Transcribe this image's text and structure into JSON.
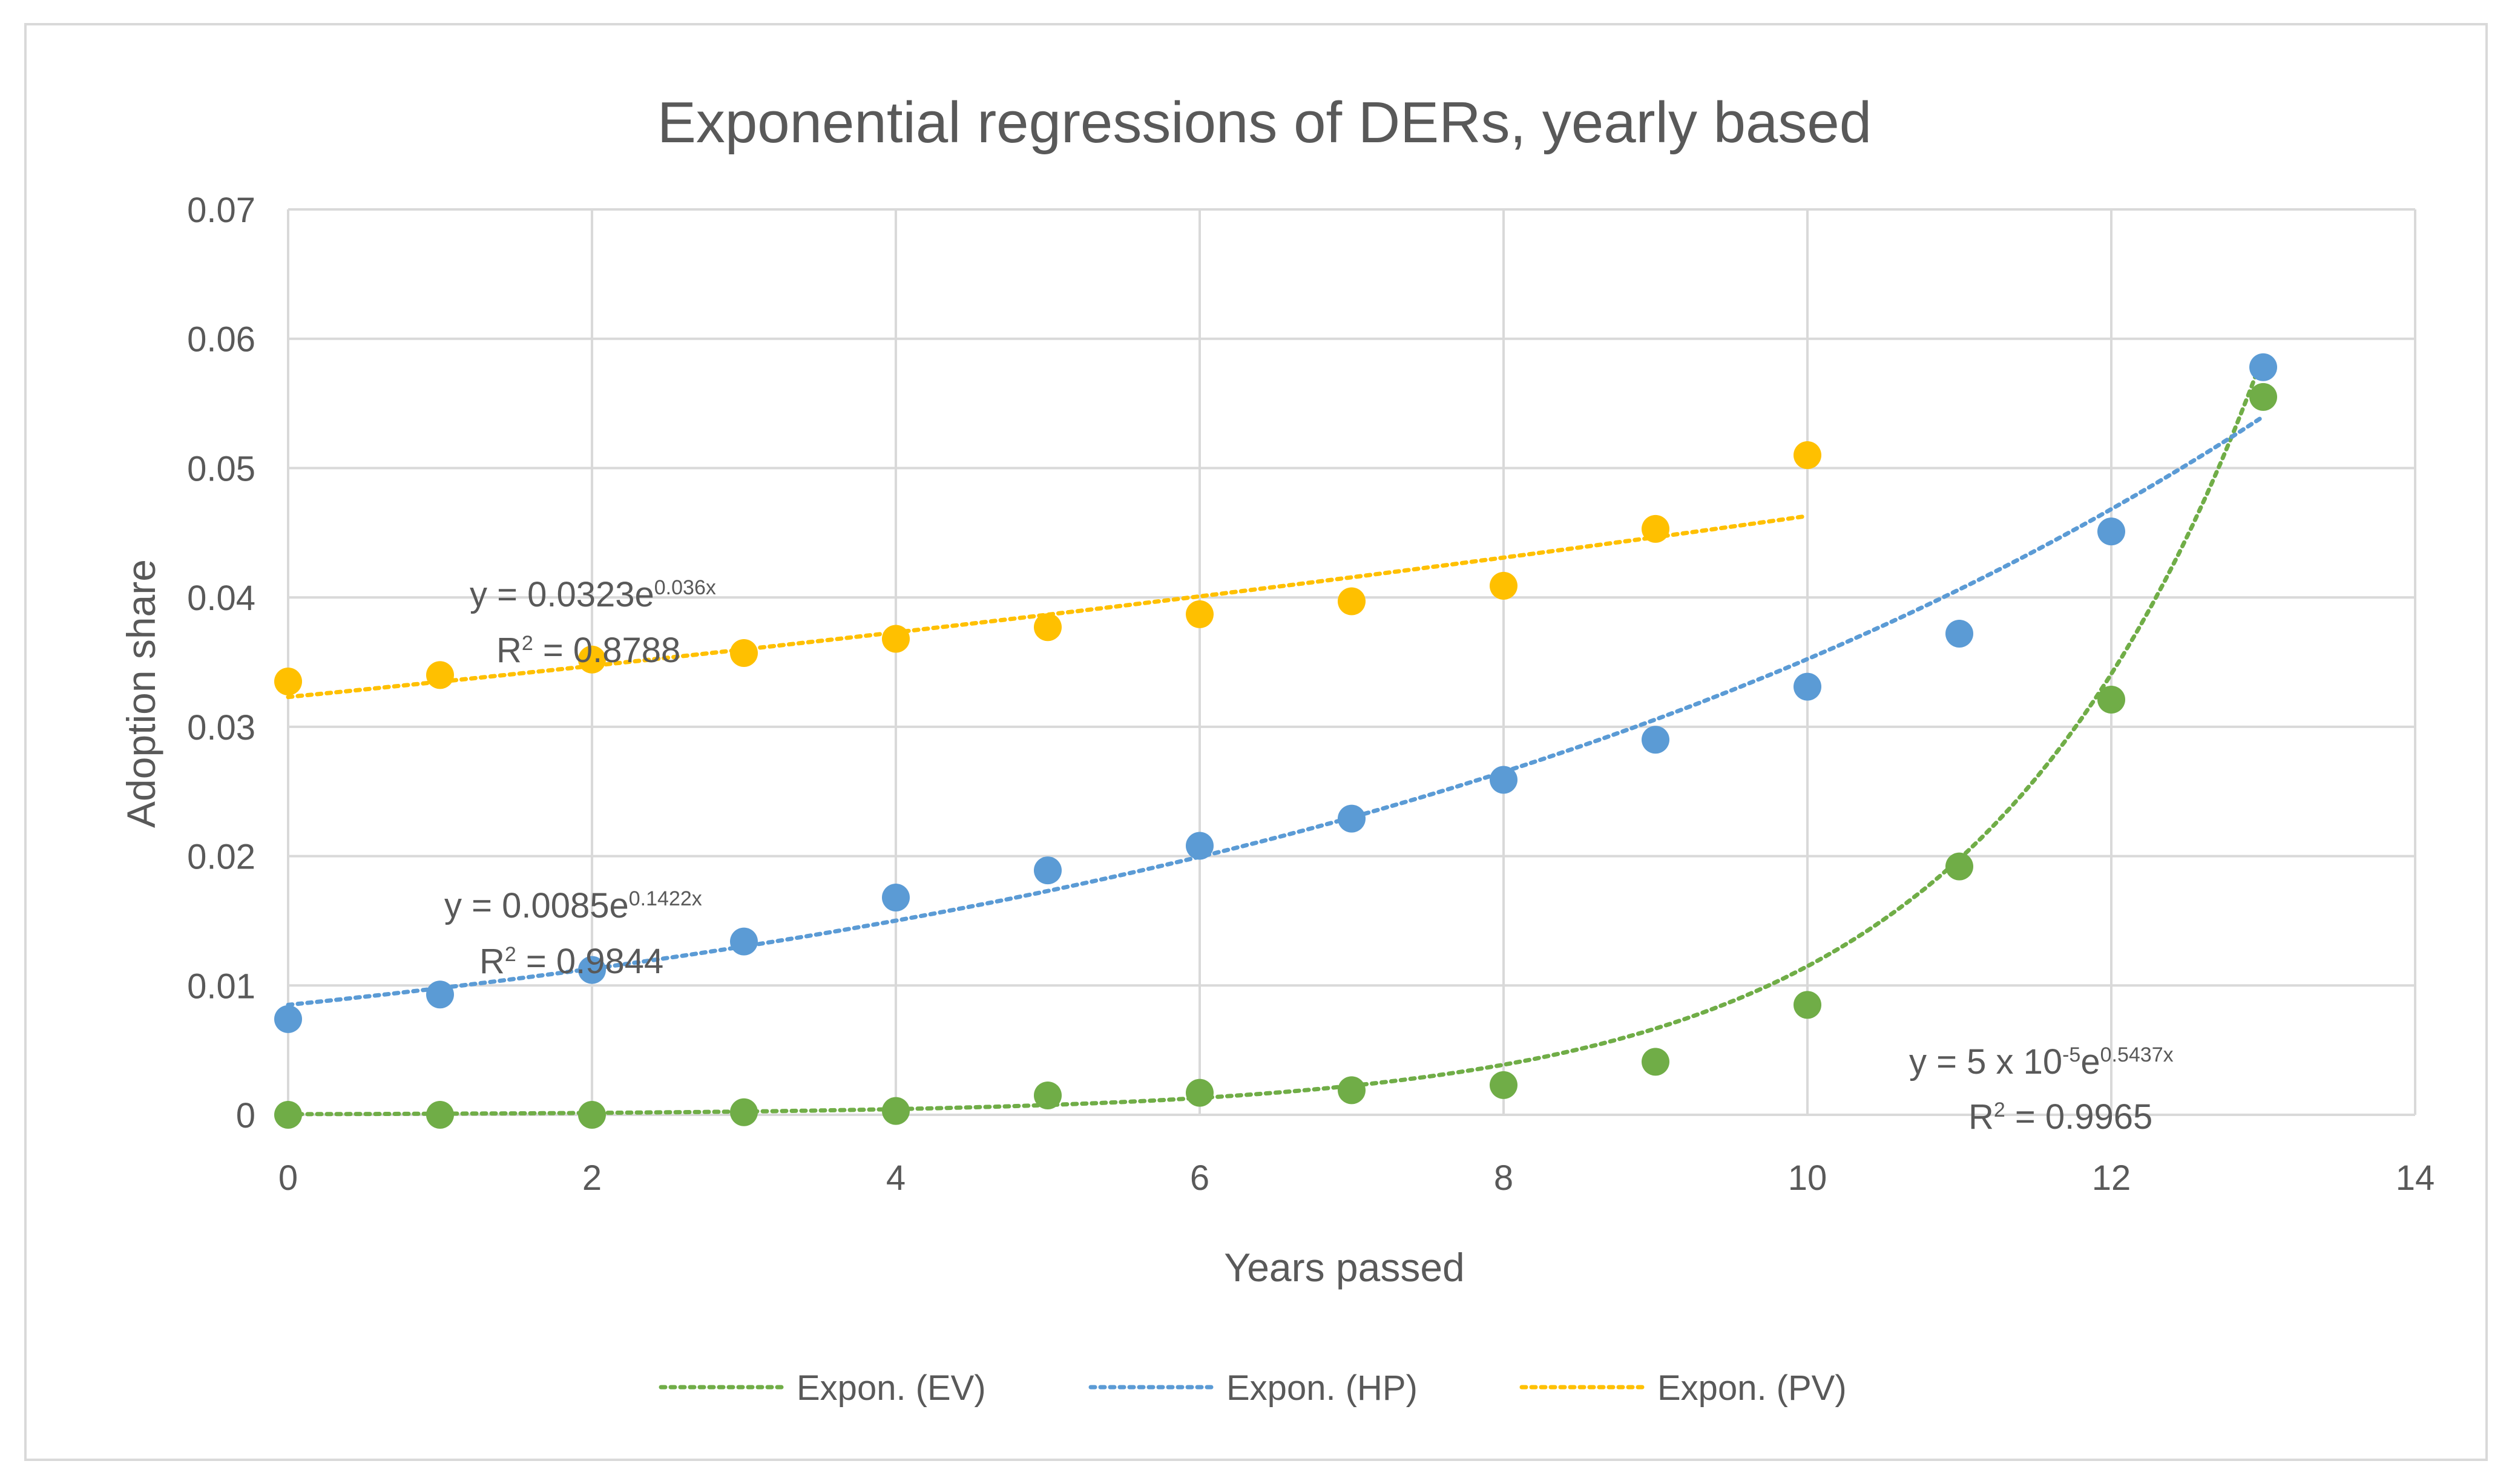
{
  "chart_data": {
    "type": "scatter",
    "title": "Exponential regressions of DERs, yearly based",
    "xlabel": "Years passed",
    "ylabel": "Adoption share",
    "xlim": [
      0,
      14
    ],
    "ylim": [
      0,
      0.07
    ],
    "x_ticks": [
      0,
      2,
      4,
      6,
      8,
      10,
      12,
      14
    ],
    "y_ticks": [
      0,
      0.01,
      0.02,
      0.03,
      0.04,
      0.05,
      0.06,
      0.07
    ],
    "y_tick_labels": [
      "0",
      "0.01",
      "0.02",
      "0.03",
      "0.04",
      "0.05",
      "0.06",
      "0.07"
    ],
    "grid": true,
    "legend_position": "bottom",
    "series": [
      {
        "name": "EV",
        "color": "#70ad47",
        "x": [
          0,
          1,
          2,
          3,
          4,
          5,
          6,
          7,
          8,
          9,
          10,
          11,
          12,
          13
        ],
        "y": [
          0.0,
          0.0,
          0.0,
          0.0002,
          0.0003,
          0.0015,
          0.0017,
          0.0019,
          0.0023,
          0.0041,
          0.0085,
          0.0192,
          0.0321,
          0.0555
        ],
        "trendline": {
          "label": "Expon. (EV)",
          "a": 5e-05,
          "b": 0.5437,
          "x_range": [
            0,
            13
          ]
        },
        "equation": {
          "y_prefix": "y = 5 x 10",
          "y_exp": "-5",
          "y_base": "e",
          "y_power": "0.5437x",
          "r2_prefix": "R",
          "r2_sup": "2",
          "r2_value": " = 0.9965"
        }
      },
      {
        "name": "HP",
        "color": "#5b9bd5",
        "x": [
          0,
          1,
          2,
          3,
          4,
          5,
          6,
          7,
          8,
          9,
          10,
          11,
          12,
          13
        ],
        "y": [
          0.0074,
          0.0093,
          0.0112,
          0.0134,
          0.0168,
          0.0189,
          0.0208,
          0.0229,
          0.0259,
          0.029,
          0.0331,
          0.0372,
          0.0451,
          0.0578
        ],
        "trendline": {
          "label": "Expon. (HP)",
          "a": 0.0085,
          "b": 0.1422,
          "x_range": [
            0,
            13
          ]
        },
        "equation": {
          "y_prefix": "y = 0.0085e",
          "y_power": "0.1422x",
          "r2_prefix": "R",
          "r2_sup": "2",
          "r2_value": " = 0.9844"
        }
      },
      {
        "name": "PV",
        "color": "#ffc000",
        "x": [
          0,
          1,
          2,
          3,
          4,
          5,
          6,
          7,
          8,
          9,
          10
        ],
        "y": [
          0.0335,
          0.034,
          0.0352,
          0.0357,
          0.0368,
          0.0377,
          0.0387,
          0.0397,
          0.0409,
          0.0453,
          0.051
        ],
        "trendline": {
          "label": "Expon. (PV)",
          "a": 0.0323,
          "b": 0.036,
          "x_range": [
            0,
            10
          ]
        },
        "equation": {
          "y_prefix": "y = 0.0323e",
          "y_power": "0.036x",
          "r2_prefix": "R",
          "r2_sup": "2",
          "r2_value": " = 0.8788"
        }
      }
    ],
    "legend": [
      "Expon. (EV)",
      "Expon. (HP)",
      "Expon. (PV)"
    ]
  }
}
